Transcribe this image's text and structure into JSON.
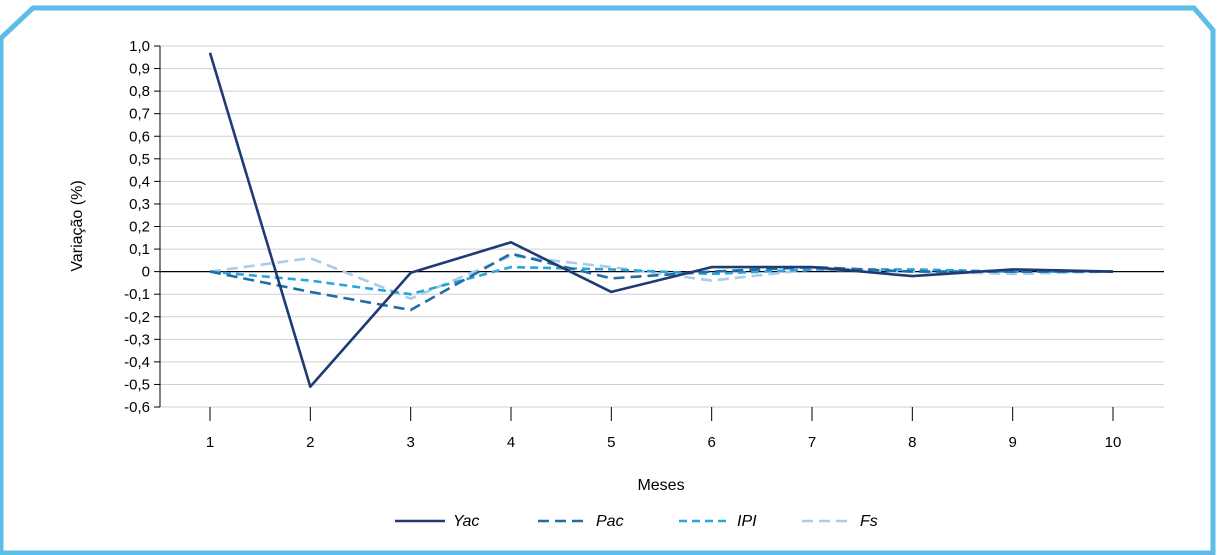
{
  "chart_data": {
    "type": "line",
    "title": "",
    "xlabel": "Meses",
    "ylabel": "Variação (%)",
    "x": [
      1,
      2,
      3,
      4,
      5,
      6,
      7,
      8,
      9,
      10
    ],
    "x_tick_labels": [
      "1",
      "2",
      "3",
      "4",
      "5",
      "6",
      "7",
      "8",
      "9",
      "10"
    ],
    "ylim": [
      -0.6,
      1.0
    ],
    "y_ticks": [
      1.0,
      0.9,
      0.8,
      0.7,
      0.6,
      0.5,
      0.4,
      0.3,
      0.2,
      0.1,
      0,
      -0.1,
      -0.2,
      -0.3,
      -0.4,
      -0.5,
      -0.6
    ],
    "y_tick_labels": [
      "1,0",
      "0,9",
      "0,8",
      "0,7",
      "0,6",
      "0,5",
      "0,4",
      "0,3",
      "0,2",
      "0,1",
      "0",
      "-0,1",
      "-0,2",
      "-0,3",
      "-0,4",
      "-0,5",
      "-0,6"
    ],
    "grid": "horizontal",
    "legend_position": "bottom",
    "series": [
      {
        "name": "Yac",
        "color": "#1f3b73",
        "dash": "solid",
        "values": [
          0.97,
          -0.51,
          -0.005,
          0.13,
          -0.09,
          0.02,
          0.02,
          -0.02,
          0.01,
          0.0
        ]
      },
      {
        "name": "Pac",
        "color": "#1f6fa5",
        "dash": "long",
        "values": [
          0.0,
          -0.09,
          -0.17,
          0.08,
          -0.03,
          0.0,
          0.02,
          0.0,
          0.0,
          0.0
        ]
      },
      {
        "name": "IPI",
        "color": "#28a5dc",
        "dash": "medium",
        "values": [
          0.0,
          -0.04,
          -0.1,
          0.02,
          0.01,
          -0.01,
          0.01,
          0.01,
          0.0,
          0.0
        ]
      },
      {
        "name": "Fs",
        "color": "#aacbea",
        "dash": "long",
        "values": [
          0.0,
          0.06,
          -0.12,
          0.07,
          0.02,
          -0.04,
          0.01,
          0.0,
          -0.01,
          0.0
        ]
      }
    ]
  },
  "frame": {
    "color": "#5bbde8"
  }
}
